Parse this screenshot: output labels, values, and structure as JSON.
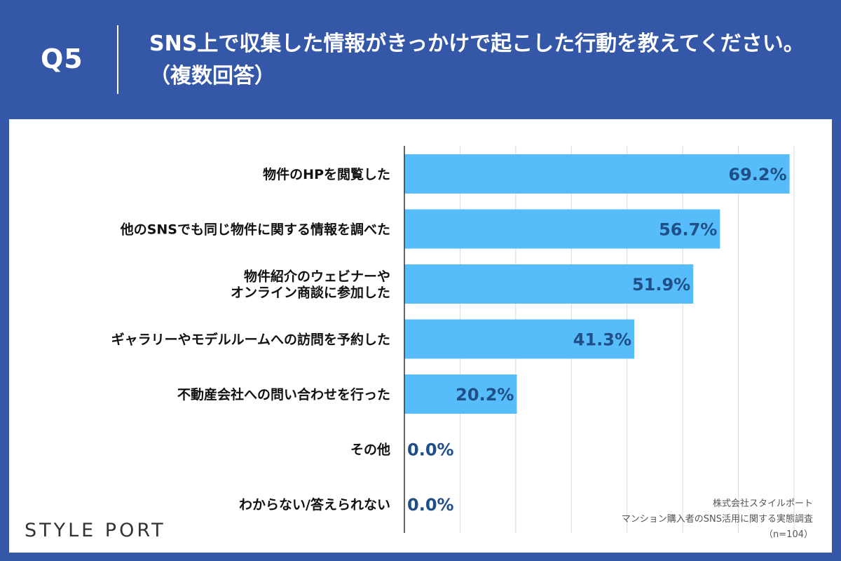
{
  "header": {
    "question": "Q5",
    "title": "SNS上で収集した情報がきっかけで起こした行動を教えてください。（複数回答）"
  },
  "chart_data": {
    "type": "bar",
    "orientation": "horizontal",
    "categories": [
      [
        "物件のHPを閲覧した"
      ],
      [
        "他のSNSでも同じ物件に関する情報を調べた"
      ],
      [
        "物件紹介のウェビナーや",
        "オンライン商談に参加した"
      ],
      [
        "ギャラリーやモデルルームへの訪問を予約した"
      ],
      [
        "不動産会社への問い合わせを行った"
      ],
      [
        "その他"
      ],
      [
        "わからない/答えられない"
      ]
    ],
    "values": [
      69.2,
      56.7,
      51.9,
      41.3,
      20.2,
      0.0,
      0.0
    ],
    "value_labels": [
      "69.2%",
      "56.7%",
      "51.9%",
      "41.3%",
      "20.2%",
      "0.0%",
      "0.0%"
    ],
    "xlim": [
      0,
      70
    ],
    "grid": true,
    "bar_color": "#56bdfa",
    "label_color": "#1f4f86"
  },
  "footer": {
    "logo": "STYLE PORT",
    "source_lines": [
      "株式会社スタイルポート",
      "マンション購入者のSNS活用に関する実態調査",
      "（n=104）"
    ]
  }
}
